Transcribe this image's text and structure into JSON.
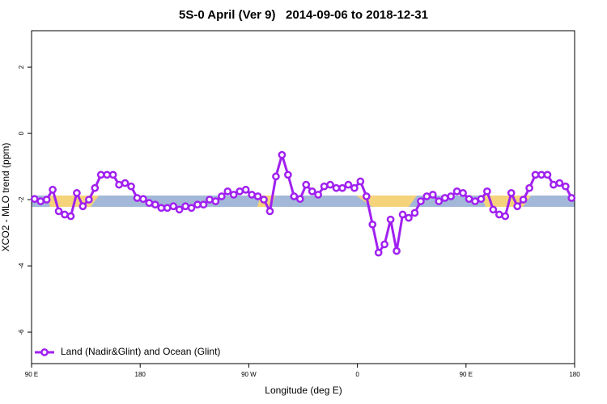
{
  "chart_data": {
    "type": "line",
    "title": "5S-0 April (Ver 9)   2014-09-06 to 2018-12-31",
    "xlabel": "Longitude (deg E)",
    "ylabel": "XCO2 - MLO trend (ppm)",
    "xlim": [
      90,
      540
    ],
    "xticks": [
      {
        "value": 90,
        "label": "90 E"
      },
      180,
      {
        "value": 270,
        "label": "90 W"
      },
      {
        "value": 360,
        "label": "0"
      },
      {
        "value": 450,
        "label": "90 E"
      },
      {
        "value": 540,
        "label": "180"
      }
    ],
    "ylim": [
      -6.95,
      3.1
    ],
    "yticks": [
      2,
      0,
      -2,
      -4,
      -6
    ],
    "legend": "bottom-left",
    "series": [
      {
        "name": "Land (Nadir&Glint) and Ocean (Glint)",
        "color": "#a020f0",
        "x": [
          92.5,
          97.5,
          102.5,
          107.5,
          112.5,
          117.5,
          122.5,
          127.5,
          132.5,
          137.5,
          142.5,
          147.5,
          152.5,
          157.5,
          162.5,
          167.5,
          172.5,
          177.5,
          182.5,
          187.5,
          192.5,
          197.5,
          202.5,
          207.5,
          212.5,
          217.5,
          222.5,
          227.5,
          232.5,
          237.5,
          242.5,
          247.5,
          252.5,
          257.5,
          262.5,
          267.5,
          272.5,
          277.5,
          282.5,
          287.5,
          292.5,
          297.5,
          302.5,
          307.5,
          312.5,
          317.5,
          322.5,
          327.5,
          332.5,
          337.5,
          342.5,
          347.5,
          352.5,
          357.5,
          362.5,
          367.5,
          372.5,
          377.5,
          382.5,
          387.5,
          392.5,
          397.5,
          402.5,
          407.5,
          412.5,
          417.5,
          422.5,
          427.5,
          432.5,
          437.5,
          442.5,
          447.5,
          452.5,
          457.5,
          462.5,
          467.5,
          472.5,
          477.5,
          482.5,
          487.5,
          492.5,
          497.5,
          502.5,
          507.5,
          512.5,
          517.5,
          522.5,
          527.5,
          532.5,
          537.5
        ],
        "values": [
          -1.98,
          -2.05,
          -2.0,
          -1.7,
          -2.35,
          -2.45,
          -2.5,
          -1.8,
          -2.2,
          -2.0,
          -1.65,
          -1.25,
          -1.25,
          -1.25,
          -1.55,
          -1.5,
          -1.6,
          -1.95,
          -1.98,
          -2.1,
          -2.15,
          -2.25,
          -2.25,
          -2.2,
          -2.3,
          -2.2,
          -2.25,
          -2.15,
          -2.15,
          -2.0,
          -2.05,
          -1.9,
          -1.75,
          -1.85,
          -1.75,
          -1.7,
          -1.85,
          -1.9,
          -2.0,
          -2.35,
          -1.3,
          -0.65,
          -1.25,
          -1.9,
          -1.98,
          -1.55,
          -1.75,
          -1.85,
          -1.6,
          -1.55,
          -1.65,
          -1.65,
          -1.55,
          -1.65,
          -1.45,
          -1.9,
          -2.75,
          -3.6,
          -3.35,
          -2.6,
          -3.55,
          -2.45,
          -2.55,
          -2.4,
          -2.05,
          -1.9,
          -1.85,
          -2.05,
          -1.95,
          -1.9,
          -1.75,
          -1.8,
          -1.98,
          -2.05,
          -1.98,
          -1.75,
          -2.3,
          -2.45,
          -2.5,
          -1.8,
          -2.2,
          -2.0,
          -1.65,
          -1.25,
          -1.25,
          -1.25,
          -1.55,
          -1.5,
          -1.6,
          -1.95
        ]
      }
    ]
  }
}
